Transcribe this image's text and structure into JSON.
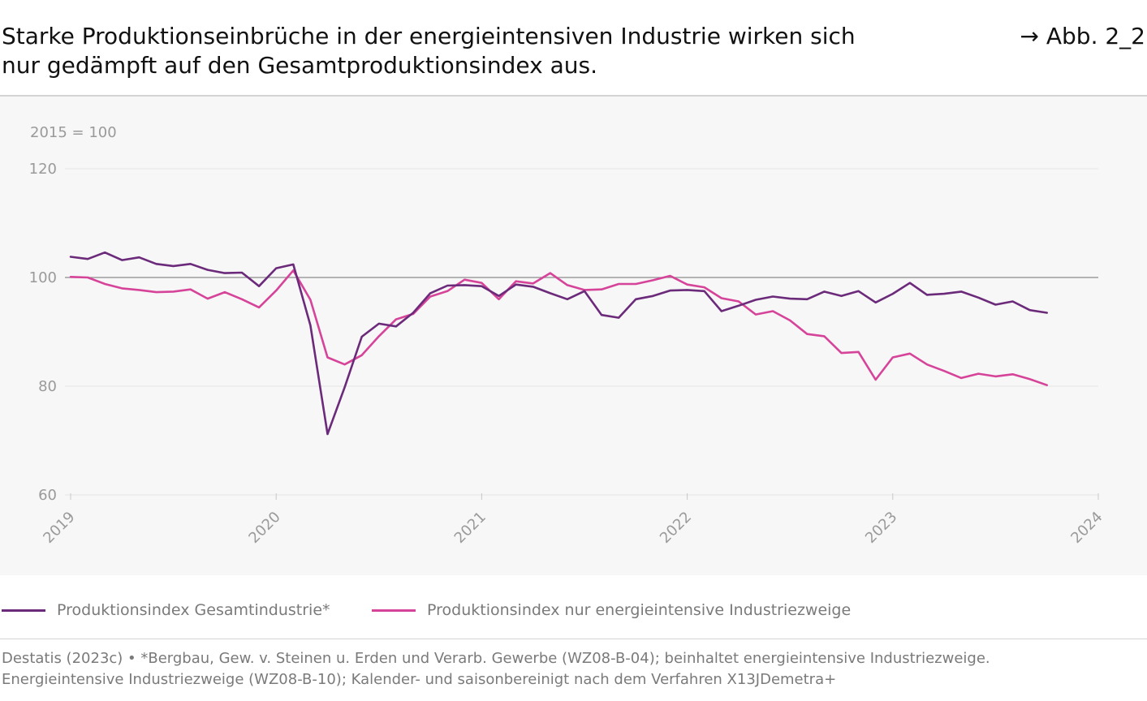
{
  "header": {
    "title_line1": "Starke Produktionseinbrüche in der energieintensiven Industrie wirken sich",
    "title_line2": "nur gedämpft auf den Gesamtproduktionsindex aus.",
    "figure_ref": "→ Abb. 2_2"
  },
  "colors": {
    "series_total": "#6b2a7a",
    "series_energy": "#d6449a",
    "reference_line": "#8c8c8c",
    "gridline": "#e6e6e6",
    "axis_text": "#9a9a9a",
    "plot_background": "#f7f7f7"
  },
  "chart_data": {
    "type": "line",
    "unit_label": "2015 = 100",
    "title": "",
    "xlabel": "",
    "ylabel": "",
    "ylim": [
      60,
      120
    ],
    "yticks": [
      60,
      80,
      100,
      120
    ],
    "xlim": [
      "2019-01",
      "2024-01"
    ],
    "xtick_labels": [
      "2019",
      "2020",
      "2021",
      "2022",
      "2023",
      "2024"
    ],
    "reference_line_y": 100,
    "grid": "horizontal",
    "x": [
      "2019-01",
      "2019-02",
      "2019-03",
      "2019-04",
      "2019-05",
      "2019-06",
      "2019-07",
      "2019-08",
      "2019-09",
      "2019-10",
      "2019-11",
      "2019-12",
      "2020-01",
      "2020-02",
      "2020-03",
      "2020-04",
      "2020-05",
      "2020-06",
      "2020-07",
      "2020-08",
      "2020-09",
      "2020-10",
      "2020-11",
      "2020-12",
      "2021-01",
      "2021-02",
      "2021-03",
      "2021-04",
      "2021-05",
      "2021-06",
      "2021-07",
      "2021-08",
      "2021-09",
      "2021-10",
      "2021-11",
      "2021-12",
      "2022-01",
      "2022-02",
      "2022-03",
      "2022-04",
      "2022-05",
      "2022-06",
      "2022-07",
      "2022-08",
      "2022-09",
      "2022-10",
      "2022-11",
      "2022-12",
      "2023-01",
      "2023-02",
      "2023-03",
      "2023-04",
      "2023-05",
      "2023-06",
      "2023-07",
      "2023-08",
      "2023-09",
      "2023-10"
    ],
    "series": [
      {
        "name": "Produktionsindex Gesamtindustrie*",
        "values": [
          103.8,
          103.4,
          104.6,
          103.2,
          103.7,
          102.5,
          102.1,
          102.5,
          101.4,
          100.8,
          100.9,
          98.4,
          101.7,
          102.4,
          91.2,
          71.2,
          79.8,
          89.1,
          91.5,
          91.0,
          93.5,
          97.1,
          98.5,
          98.6,
          98.4,
          96.6,
          98.7,
          98.3,
          97.1,
          96.0,
          97.5,
          93.1,
          92.6,
          96.0,
          96.6,
          97.6,
          97.7,
          97.5,
          93.8,
          94.8,
          95.9,
          96.5,
          96.1,
          96.0,
          97.4,
          96.6,
          97.5,
          95.4,
          97.0,
          99.0,
          96.8,
          97.0,
          97.4,
          96.3,
          95.0,
          95.6,
          94.0,
          93.5
        ]
      },
      {
        "name": "Produktionsindex nur energieintensive Industriezweige",
        "values": [
          100.1,
          100.0,
          98.8,
          98.0,
          97.7,
          97.3,
          97.4,
          97.8,
          96.1,
          97.3,
          96.0,
          94.5,
          97.6,
          101.3,
          95.9,
          85.3,
          84.0,
          85.7,
          89.2,
          92.3,
          93.3,
          96.5,
          97.5,
          99.6,
          99.0,
          96.0,
          99.3,
          98.9,
          100.8,
          98.6,
          97.7,
          97.8,
          98.8,
          98.8,
          99.5,
          100.3,
          98.7,
          98.2,
          96.2,
          95.6,
          93.2,
          93.8,
          92.1,
          89.6,
          89.2,
          86.1,
          86.3,
          81.2,
          85.3,
          86.0,
          84.0,
          82.8,
          81.5,
          82.3,
          81.8,
          82.2,
          81.3,
          80.2
        ]
      }
    ]
  },
  "legend": {
    "items": [
      {
        "label": "Produktionsindex Gesamtindustrie*",
        "color": "#6b2a7a"
      },
      {
        "label": "Produktionsindex nur energieintensive Industriezweige",
        "color": "#d6449a"
      }
    ]
  },
  "source": {
    "line1": "Destatis (2023c) • *Bergbau, Gew. v. Steinen u. Erden und Verarb. Gewerbe (WZ08-B-04); beinhaltet energieintensive Industriezweige.",
    "line2": "Energieintensive Industriezweige (WZ08-B-10); Kalender- und saisonbereinigt nach dem Verfahren X13JDemetra+"
  }
}
